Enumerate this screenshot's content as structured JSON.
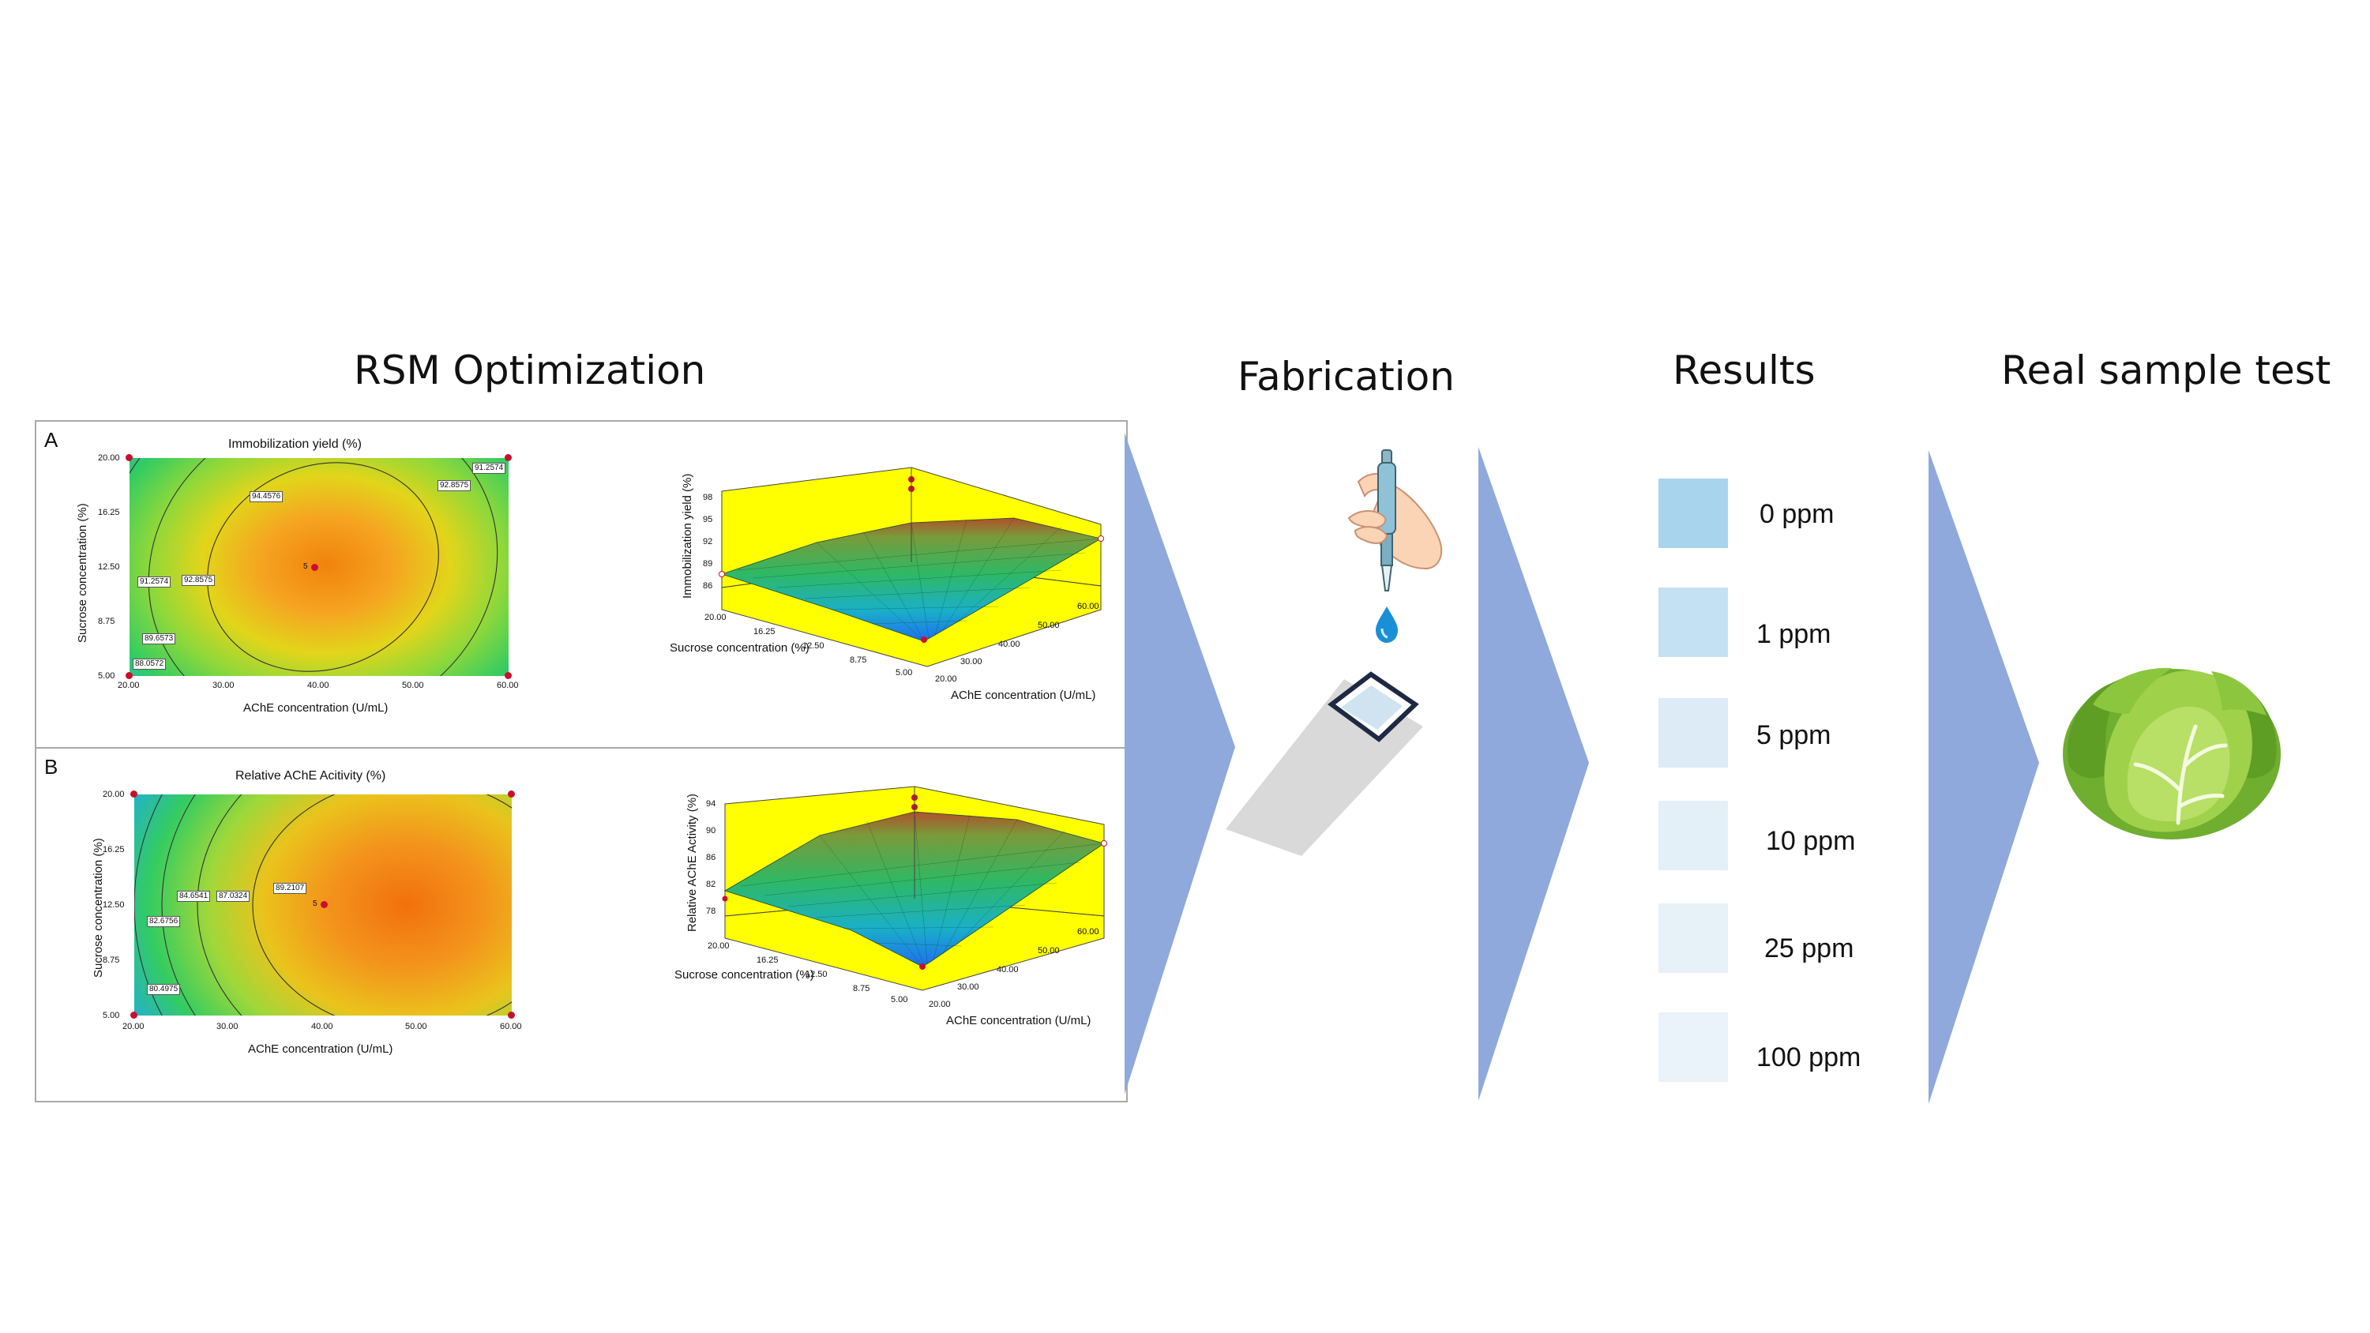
{
  "titles": {
    "rsm": "RSM Optimization",
    "fabrication": "Fabrication",
    "results": "Results",
    "real_sample": "Real sample test"
  },
  "panel_a": {
    "letter": "A",
    "contour_title": "Immobilization yield (%)",
    "x_label": "AChE concentration (U/mL)",
    "y_label": "Sucrose concentration (%)",
    "x_ticks": [
      "20.00",
      "30.00",
      "40.00",
      "50.00",
      "60.00"
    ],
    "y_ticks": [
      "20.00",
      "16.25",
      "12.50",
      "8.75",
      "5.00"
    ],
    "contour_labels": [
      "94.4576",
      "91.2574",
      "92.8575",
      "89.6573",
      "88.0572",
      "91.2574",
      "92.8575"
    ],
    "center_label": "5",
    "surface_z_label": "Immobilization yield (%)",
    "surface_z_ticks": [
      "98",
      "95",
      "92",
      "89",
      "86"
    ],
    "surface_sucrose_label": "Sucrose concentration (%)",
    "surface_sucrose_ticks": [
      "20.00",
      "16.25",
      "12.50",
      "8.75",
      "5.00"
    ],
    "surface_ache_label": "AChE concentration (U/mL)",
    "surface_ache_ticks": [
      "20.00",
      "30.00",
      "40.00",
      "50.00",
      "60.00"
    ]
  },
  "panel_b": {
    "letter": "B",
    "contour_title": "Relative AChE Acitivity (%)",
    "x_label": "AChE concentration (U/mL)",
    "y_label": "Sucrose concentration (%)",
    "x_ticks": [
      "20.00",
      "30.00",
      "40.00",
      "50.00",
      "60.00"
    ],
    "y_ticks": [
      "20.00",
      "16.25",
      "12.50",
      "8.75",
      "5.00"
    ],
    "contour_labels": [
      "84.6541",
      "87.0324",
      "82.6756",
      "80.4975",
      "89.2107"
    ],
    "center_label": "5",
    "surface_z_label": "Relative AChE Activity (%)",
    "surface_z_ticks": [
      "94",
      "90",
      "86",
      "82",
      "78"
    ],
    "surface_sucrose_label": "Sucrose concentration (%)",
    "surface_sucrose_ticks": [
      "20.00",
      "16.25",
      "12.50",
      "8.75",
      "5.00"
    ],
    "surface_ache_label": "AChE concentration (U/mL)",
    "surface_ache_ticks": [
      "20.00",
      "30.00",
      "40.00",
      "50.00",
      "60.00"
    ]
  },
  "results": [
    {
      "label": "0 ppm",
      "color": "#a8d4ee"
    },
    {
      "label": "1 ppm",
      "color": "#c4e1f3"
    },
    {
      "label": "5 ppm",
      "color": "#dcebf6"
    },
    {
      "label": "10 ppm",
      "color": "#e4f0f8"
    },
    {
      "label": "25 ppm",
      "color": "#e6f1f8"
    },
    {
      "label": "100 ppm",
      "color": "#eaf3f9"
    }
  ],
  "colors": {
    "arrow": "#8fa9dc",
    "surface_bg": "#ffff00",
    "design_point": "#c8102e",
    "strip": "#d9d9d9",
    "water": "#1a8fd6",
    "skin": "#fbd3b5",
    "cabbage": "#8cc63f"
  },
  "icons": [
    "pipette-icon",
    "water-drop-icon",
    "test-strip-icon",
    "cabbage-icon",
    "flow-arrow-icon"
  ]
}
